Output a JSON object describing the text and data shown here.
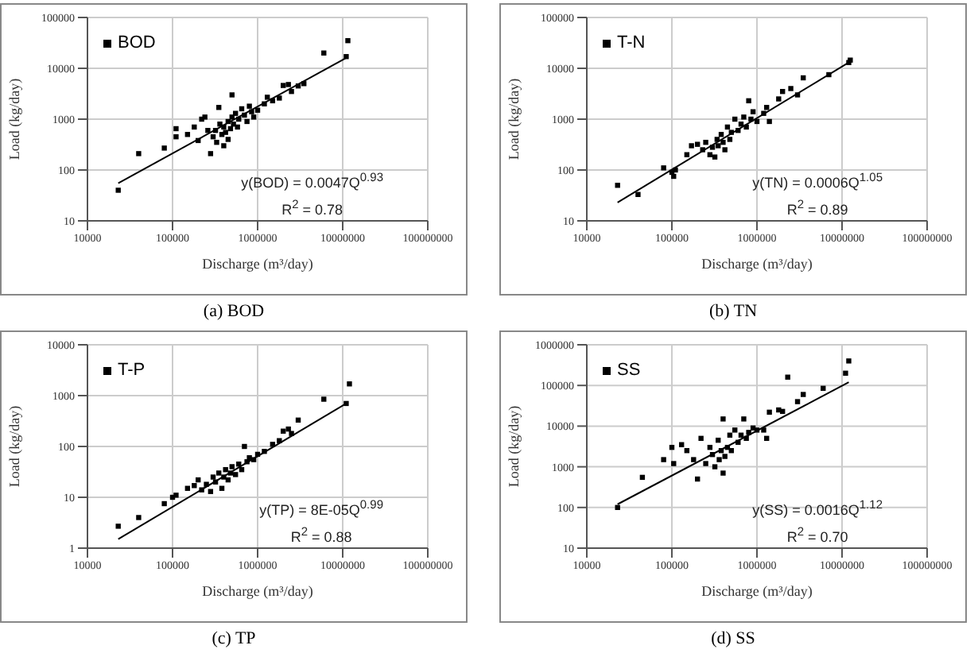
{
  "chart_data": [
    {
      "type": "scatter",
      "title": "(a) BOD",
      "xlabel": "Discharge (m³/day)",
      "ylabel": "Load (kg/day)",
      "log": "xy",
      "grid": true,
      "legend": "top left",
      "xlim": [
        10000,
        100000000
      ],
      "xticks": [
        10000,
        100000,
        1000000,
        10000000,
        100000000
      ],
      "ylim": [
        10,
        100000
      ],
      "yticks": [
        10,
        100,
        1000,
        10000,
        100000
      ],
      "annotations": [
        "y(BOD) = 0.0047Q$^{0.93}$",
        "R$^{2}$ = 0.78"
      ],
      "series": [
        {
          "name": "BOD",
          "type": "scatter",
          "marker": "square",
          "color": "#000000",
          "x": [
            23000,
            40000,
            80000,
            110000,
            110000,
            150000,
            180000,
            200000,
            220000,
            240000,
            260000,
            280000,
            300000,
            320000,
            330000,
            350000,
            360000,
            380000,
            400000,
            400000,
            420000,
            450000,
            450000,
            480000,
            500000,
            500000,
            520000,
            550000,
            580000,
            600000,
            650000,
            700000,
            750000,
            800000,
            850000,
            900000,
            1000000,
            1200000,
            1300000,
            1500000,
            1800000,
            2000000,
            2300000,
            2500000,
            3000000,
            3500000,
            6000000,
            11000000,
            11500000
          ],
          "values": [
            40,
            210,
            270,
            650,
            450,
            500,
            700,
            380,
            1000,
            1100,
            600,
            210,
            450,
            600,
            350,
            1700,
            800,
            500,
            300,
            700,
            550,
            900,
            400,
            650,
            1100,
            3000,
            800,
            1300,
            700,
            1000,
            1600,
            1200,
            900,
            1800,
            1400,
            1100,
            1500,
            2000,
            2700,
            2300,
            2600,
            4600,
            4800,
            3500,
            4500,
            5000,
            20000,
            17000,
            35000
          ]
        },
        {
          "type": "line",
          "marker": "none",
          "line_style": "solid",
          "color": "#000000",
          "x": [
            23000,
            11000000
          ],
          "values": [
            55,
            16000
          ]
        }
      ]
    },
    {
      "type": "scatter",
      "title": "(b) TN",
      "xlabel": "Discharge (m³/day)",
      "ylabel": "Load (kg/day)",
      "log": "xy",
      "grid": true,
      "legend": "top left",
      "xlim": [
        10000,
        100000000
      ],
      "xticks": [
        10000,
        100000,
        1000000,
        10000000,
        100000000
      ],
      "ylim": [
        10,
        100000
      ],
      "yticks": [
        10,
        100,
        1000,
        10000,
        100000
      ],
      "annotations": [
        "y(TN) = 0.0006Q$^{1.05}$",
        "R$^{2}$ = 0.89"
      ],
      "series": [
        {
          "name": "T-N",
          "type": "scatter",
          "marker": "square",
          "color": "#000000",
          "x": [
            23000,
            40000,
            80000,
            100000,
            105000,
            110000,
            150000,
            170000,
            200000,
            230000,
            250000,
            280000,
            300000,
            320000,
            340000,
            350000,
            380000,
            400000,
            420000,
            450000,
            480000,
            500000,
            550000,
            600000,
            650000,
            700000,
            750000,
            800000,
            850000,
            900000,
            1000000,
            1200000,
            1300000,
            1400000,
            1800000,
            2000000,
            2500000,
            3000000,
            3500000,
            7000000,
            12000000,
            12500000
          ],
          "values": [
            50,
            33,
            110,
            90,
            75,
            100,
            200,
            300,
            320,
            250,
            350,
            200,
            280,
            180,
            400,
            300,
            500,
            350,
            250,
            700,
            400,
            550,
            1000,
            600,
            800,
            1100,
            700,
            2300,
            1000,
            1400,
            900,
            1300,
            1700,
            900,
            2500,
            3500,
            4000,
            3000,
            6500,
            7500,
            13000,
            14500
          ]
        },
        {
          "type": "line",
          "marker": "none",
          "line_style": "solid",
          "color": "#000000",
          "x": [
            23000,
            12000000
          ],
          "values": [
            23,
            13000
          ]
        }
      ]
    },
    {
      "type": "scatter",
      "title": "(c) TP",
      "xlabel": "Discharge (m³/day)",
      "ylabel": "Load (kg/day)",
      "log": "xy",
      "grid": true,
      "legend": "top left",
      "xlim": [
        10000,
        100000000
      ],
      "xticks": [
        10000,
        100000,
        1000000,
        10000000,
        100000000
      ],
      "ylim": [
        1,
        10000
      ],
      "yticks": [
        1,
        10,
        100,
        1000,
        10000
      ],
      "annotations": [
        "y(TP) = 8E-05Q$^{0.99}$",
        "R$^{2}$ = 0.88"
      ],
      "series": [
        {
          "name": "T-P",
          "type": "scatter",
          "marker": "square",
          "color": "#000000",
          "x": [
            23000,
            40000,
            80000,
            100000,
            110000,
            150000,
            180000,
            200000,
            220000,
            250000,
            280000,
            300000,
            320000,
            350000,
            380000,
            400000,
            420000,
            450000,
            480000,
            500000,
            550000,
            600000,
            650000,
            700000,
            750000,
            800000,
            900000,
            1000000,
            1200000,
            1500000,
            1800000,
            2000000,
            2300000,
            2500000,
            3000000,
            6000000,
            11000000,
            12000000
          ],
          "values": [
            2.7,
            4,
            7.5,
            10,
            11,
            15,
            17,
            22,
            14,
            18,
            13,
            25,
            20,
            30,
            15,
            25,
            35,
            22,
            30,
            40,
            28,
            45,
            35,
            100,
            50,
            60,
            55,
            70,
            80,
            110,
            130,
            200,
            220,
            180,
            330,
            850,
            700,
            1700
          ]
        },
        {
          "type": "line",
          "marker": "none",
          "line_style": "solid",
          "color": "#000000",
          "x": [
            23000,
            11000000
          ],
          "values": [
            1.5,
            700
          ]
        }
      ]
    },
    {
      "type": "scatter",
      "title": "(d) SS",
      "xlabel": "Discharge (m³/day)",
      "ylabel": "Load (kg/day)",
      "log": "xy",
      "grid": true,
      "legend": "top left",
      "xlim": [
        10000,
        100000000
      ],
      "xticks": [
        10000,
        100000,
        1000000,
        10000000,
        100000000
      ],
      "ylim": [
        10,
        1000000
      ],
      "yticks": [
        10,
        100,
        1000,
        10000,
        100000,
        1000000
      ],
      "annotations": [
        "y(SS) = 0.0016Q$^{1.12}$",
        "R$^{2}$ = 0.70"
      ],
      "series": [
        {
          "name": "SS",
          "type": "scatter",
          "marker": "square",
          "color": "#000000",
          "x": [
            23000,
            45000,
            80000,
            100000,
            105000,
            130000,
            150000,
            180000,
            200000,
            220000,
            250000,
            280000,
            300000,
            320000,
            350000,
            360000,
            380000,
            400000,
            400000,
            420000,
            450000,
            480000,
            500000,
            550000,
            600000,
            650000,
            700000,
            750000,
            800000,
            900000,
            1000000,
            1200000,
            1300000,
            1400000,
            1800000,
            2000000,
            2300000,
            3000000,
            3500000,
            6000000,
            11000000,
            12000000
          ],
          "values": [
            100,
            550,
            1500,
            3000,
            1200,
            3500,
            2500,
            1500,
            500,
            5000,
            1200,
            3000,
            2000,
            1000,
            4500,
            1500,
            2500,
            700,
            15000,
            1800,
            3000,
            6000,
            2500,
            8000,
            4000,
            6000,
            15000,
            5000,
            7000,
            9000,
            8000,
            8000,
            5000,
            22000,
            25000,
            23000,
            160000,
            40000,
            60000,
            85000,
            200000,
            400000
          ]
        },
        {
          "type": "line",
          "marker": "none",
          "line_style": "solid",
          "color": "#000000",
          "x": [
            23000,
            12000000
          ],
          "values": [
            120,
            120000
          ]
        }
      ]
    }
  ]
}
